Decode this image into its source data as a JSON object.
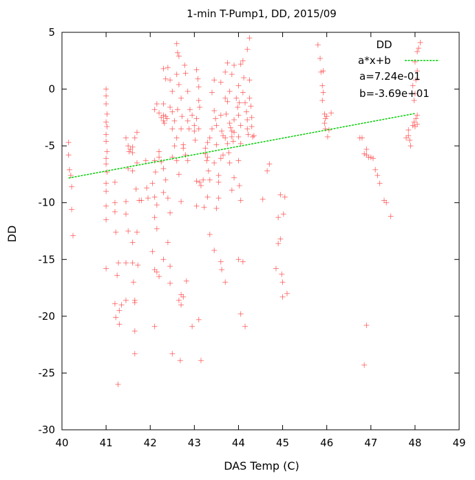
{
  "chart_data": {
    "type": "scatter",
    "title": "1-min T-Pump1, DD, 2015/09",
    "xlabel": "DAS Temp (C)",
    "ylabel": "DD",
    "xlim": [
      40,
      49
    ],
    "ylim": [
      -30,
      5
    ],
    "xticks": [
      "40",
      "41",
      "42",
      "43",
      "44",
      "45",
      "46",
      "47",
      "48",
      "49"
    ],
    "yticks": [
      "-30",
      "-25",
      "-20",
      "-15",
      "-10",
      "-5",
      "0",
      "5"
    ],
    "grid": false,
    "legend_position": "top-right",
    "legend": {
      "scatter_label": "DD",
      "fit_label": "a*x+b",
      "a_text": "a=7.24e-01",
      "b_text": "b=-3.69e+01"
    },
    "fit": {
      "a": 0.724,
      "b": -36.9,
      "x_range": [
        40.15,
        48.0
      ]
    },
    "colors": {
      "scatter": "#ff4040",
      "fit": "#00cc00"
    },
    "series": [
      {
        "marker": "plus",
        "points": [
          [
            40.15,
            -4.7
          ],
          [
            40.15,
            -5.8
          ],
          [
            40.17,
            -7.1
          ],
          [
            40.2,
            -7.6
          ],
          [
            40.22,
            -8.6
          ],
          [
            40.22,
            -10.6
          ],
          [
            40.25,
            -12.9
          ],
          [
            41.0,
            0.0
          ],
          [
            41.0,
            -0.6
          ],
          [
            41.0,
            -1.3
          ],
          [
            41.02,
            -2.2
          ],
          [
            41.0,
            -2.9
          ],
          [
            41.02,
            -3.3
          ],
          [
            41.0,
            -4.0
          ],
          [
            41.0,
            -4.6
          ],
          [
            41.02,
            -5.5
          ],
          [
            41.0,
            -6.1
          ],
          [
            41.0,
            -6.6
          ],
          [
            41.02,
            -7.3
          ],
          [
            41.0,
            -8.3
          ],
          [
            41.0,
            -9.0
          ],
          [
            41.0,
            -10.3
          ],
          [
            41.0,
            -11.5
          ],
          [
            41.0,
            -15.8
          ],
          [
            41.2,
            -8.2
          ],
          [
            41.2,
            -10.0
          ],
          [
            41.2,
            -10.8
          ],
          [
            41.22,
            -12.6
          ],
          [
            41.28,
            -15.3
          ],
          [
            41.25,
            -16.4
          ],
          [
            41.2,
            -18.9
          ],
          [
            41.22,
            -20.1
          ],
          [
            41.3,
            -20.7
          ],
          [
            41.3,
            -19.5
          ],
          [
            41.35,
            -19.0
          ],
          [
            41.27,
            -26.0
          ],
          [
            41.45,
            -4.3
          ],
          [
            41.5,
            -5.0
          ],
          [
            41.52,
            -5.5
          ],
          [
            41.55,
            -5.3
          ],
          [
            41.6,
            -5.1
          ],
          [
            41.6,
            -5.6
          ],
          [
            41.65,
            -4.3
          ],
          [
            41.5,
            -7.0
          ],
          [
            41.6,
            -7.2
          ],
          [
            41.45,
            -9.9
          ],
          [
            41.45,
            -11.0
          ],
          [
            41.5,
            -12.5
          ],
          [
            41.45,
            -15.3
          ],
          [
            41.45,
            -18.6
          ],
          [
            41.6,
            -13.5
          ],
          [
            41.6,
            -15.3
          ],
          [
            41.62,
            -17.0
          ],
          [
            41.65,
            -18.6
          ],
          [
            41.65,
            -18.8
          ],
          [
            41.65,
            -21.3
          ],
          [
            41.65,
            -23.3
          ],
          [
            41.7,
            -3.8
          ],
          [
            41.7,
            -6.5
          ],
          [
            41.68,
            -8.8
          ],
          [
            41.75,
            -9.8
          ],
          [
            41.7,
            -12.6
          ],
          [
            41.72,
            -15.5
          ],
          [
            41.9,
            -6.3
          ],
          [
            41.92,
            -8.7
          ],
          [
            41.95,
            -9.6
          ],
          [
            41.8,
            -9.8
          ],
          [
            42.1,
            -1.8
          ],
          [
            42.15,
            -1.3
          ],
          [
            42.1,
            -6.3
          ],
          [
            42.12,
            -7.3
          ],
          [
            42.05,
            -8.3
          ],
          [
            42.1,
            -9.5
          ],
          [
            42.15,
            -10.2
          ],
          [
            42.1,
            -11.3
          ],
          [
            42.15,
            -12.3
          ],
          [
            42.05,
            -14.3
          ],
          [
            42.1,
            -15.9
          ],
          [
            42.15,
            -16.1
          ],
          [
            42.2,
            -16.5
          ],
          [
            42.1,
            -20.9
          ],
          [
            42.2,
            -2.1
          ],
          [
            42.25,
            -2.5
          ],
          [
            42.3,
            -2.3
          ],
          [
            42.3,
            -2.8
          ],
          [
            42.35,
            -2.4
          ],
          [
            42.38,
            -2.6
          ],
          [
            42.3,
            -1.3
          ],
          [
            42.32,
            -3.0
          ],
          [
            42.2,
            -5.5
          ],
          [
            42.2,
            -6.0
          ],
          [
            42.25,
            -6.4
          ],
          [
            42.3,
            -7.0
          ],
          [
            42.35,
            -8.0
          ],
          [
            42.3,
            -9.1
          ],
          [
            42.4,
            -9.6
          ],
          [
            42.45,
            -10.9
          ],
          [
            42.4,
            -13.5
          ],
          [
            42.3,
            -15.0
          ],
          [
            42.45,
            -15.6
          ],
          [
            42.45,
            -17.1
          ],
          [
            42.5,
            -23.3
          ],
          [
            42.3,
            1.8
          ],
          [
            42.35,
            0.9
          ],
          [
            42.4,
            1.9
          ],
          [
            42.45,
            0.8
          ],
          [
            42.5,
            -0.2
          ],
          [
            42.45,
            -1.6
          ],
          [
            42.5,
            -2.0
          ],
          [
            42.55,
            -2.8
          ],
          [
            42.5,
            -3.5
          ],
          [
            42.55,
            -5.0
          ],
          [
            42.6,
            -4.3
          ],
          [
            42.5,
            -6.0
          ],
          [
            42.6,
            -6.3
          ],
          [
            42.65,
            -7.5
          ],
          [
            42.6,
            4.0
          ],
          [
            42.62,
            3.2
          ],
          [
            42.65,
            2.9
          ],
          [
            42.6,
            1.3
          ],
          [
            42.65,
            0.4
          ],
          [
            42.7,
            -0.8
          ],
          [
            42.62,
            -1.8
          ],
          [
            42.72,
            -2.4
          ],
          [
            42.7,
            -3.5
          ],
          [
            42.75,
            -4.9
          ],
          [
            42.75,
            -5.2
          ],
          [
            42.7,
            -9.9
          ],
          [
            42.7,
            -18.1
          ],
          [
            42.65,
            -18.6
          ],
          [
            42.7,
            -19.0
          ],
          [
            42.75,
            -18.3
          ],
          [
            42.68,
            -23.9
          ],
          [
            42.78,
            2.1
          ],
          [
            42.8,
            1.4
          ],
          [
            42.85,
            -0.2
          ],
          [
            42.9,
            -1.8
          ],
          [
            42.85,
            -2.8
          ],
          [
            42.88,
            -3.5
          ],
          [
            42.8,
            -5.8
          ],
          [
            42.85,
            -6.3
          ],
          [
            42.82,
            -16.9
          ],
          [
            42.95,
            -20.9
          ],
          [
            42.95,
            -2.3
          ],
          [
            43.0,
            -3.2
          ],
          [
            43.0,
            -3.7
          ],
          [
            43.02,
            -4.5
          ],
          [
            43.05,
            -8.1
          ],
          [
            43.05,
            -10.3
          ],
          [
            43.1,
            -20.3
          ],
          [
            43.15,
            -23.9
          ],
          [
            43.05,
            1.7
          ],
          [
            43.08,
            0.9
          ],
          [
            43.1,
            0.2
          ],
          [
            43.1,
            -1.0
          ],
          [
            43.12,
            -1.6
          ],
          [
            43.05,
            -2.6
          ],
          [
            43.1,
            -3.5
          ],
          [
            43.12,
            -8.2
          ],
          [
            43.15,
            -8.5
          ],
          [
            43.2,
            -8.0
          ],
          [
            43.22,
            -10.4
          ],
          [
            43.25,
            -5.2
          ],
          [
            43.25,
            -5.7
          ],
          [
            43.28,
            -6.3
          ],
          [
            43.3,
            -4.7
          ],
          [
            43.3,
            -6.0
          ],
          [
            43.32,
            -7.2
          ],
          [
            43.35,
            -8.0
          ],
          [
            43.3,
            -9.5
          ],
          [
            43.35,
            -12.8
          ],
          [
            43.35,
            -4.3
          ],
          [
            43.4,
            -0.3
          ],
          [
            43.45,
            0.8
          ],
          [
            43.45,
            -1.9
          ],
          [
            43.48,
            -2.6
          ],
          [
            43.4,
            -3.5
          ],
          [
            43.5,
            -3.2
          ],
          [
            43.5,
            -4.9
          ],
          [
            43.45,
            -6.5
          ],
          [
            43.55,
            -8.2
          ],
          [
            43.55,
            -9.6
          ],
          [
            43.45,
            -14.2
          ],
          [
            43.5,
            -10.5
          ],
          [
            43.6,
            -2.3
          ],
          [
            43.62,
            -3.7
          ],
          [
            43.65,
            -4.1
          ],
          [
            43.65,
            -5.8
          ],
          [
            43.6,
            -6.1
          ],
          [
            43.55,
            -7.6
          ],
          [
            43.7,
            -4.3
          ],
          [
            43.75,
            -4.8
          ],
          [
            43.7,
            -0.8
          ],
          [
            43.75,
            -1.1
          ],
          [
            43.72,
            -2.2
          ],
          [
            43.6,
            -15.2
          ],
          [
            43.62,
            -15.9
          ],
          [
            43.7,
            -17.0
          ],
          [
            43.8,
            -3.0
          ],
          [
            43.82,
            -3.4
          ],
          [
            43.85,
            -3.7
          ],
          [
            43.85,
            -4.2
          ],
          [
            43.88,
            -4.6
          ],
          [
            43.78,
            -5.6
          ],
          [
            43.8,
            -6.5
          ],
          [
            43.9,
            -7.8
          ],
          [
            43.85,
            -8.9
          ],
          [
            43.9,
            -3.8
          ],
          [
            43.9,
            -2.7
          ],
          [
            43.95,
            -0.8
          ],
          [
            43.98,
            -1.6
          ],
          [
            44.0,
            -2.3
          ],
          [
            44.05,
            -3.2
          ],
          [
            44.0,
            -4.2
          ],
          [
            44.05,
            -4.8
          ],
          [
            44.0,
            -6.3
          ],
          [
            44.02,
            -8.5
          ],
          [
            44.05,
            -9.8
          ],
          [
            44.0,
            -15.0
          ],
          [
            44.05,
            -19.8
          ],
          [
            44.1,
            -15.2
          ],
          [
            44.15,
            -20.9
          ],
          [
            44.1,
            -0.3
          ],
          [
            44.15,
            -1.2
          ],
          [
            44.18,
            -2.0
          ],
          [
            44.2,
            -2.7
          ],
          [
            44.2,
            -3.5
          ],
          [
            44.22,
            -4.0
          ],
          [
            44.25,
            -0.8
          ],
          [
            44.28,
            -1.5
          ],
          [
            44.3,
            -2.5
          ],
          [
            44.3,
            -3.3
          ],
          [
            44.32,
            -4.2
          ],
          [
            44.35,
            -4.1
          ],
          [
            44.0,
            0.3
          ],
          [
            44.02,
            -1.2
          ],
          [
            44.05,
            2.2
          ],
          [
            44.1,
            2.5
          ],
          [
            44.12,
            1.0
          ],
          [
            44.25,
            4.5
          ],
          [
            44.2,
            3.5
          ],
          [
            44.25,
            0.8
          ],
          [
            43.85,
            1.3
          ],
          [
            43.9,
            2.1
          ],
          [
            43.75,
            2.3
          ],
          [
            43.7,
            1.5
          ],
          [
            43.8,
            -0.2
          ],
          [
            43.6,
            0.6
          ],
          [
            44.55,
            -9.7
          ],
          [
            44.65,
            -7.2
          ],
          [
            44.7,
            -6.6
          ],
          [
            44.85,
            -15.8
          ],
          [
            44.9,
            -11.3
          ],
          [
            44.9,
            -13.6
          ],
          [
            44.95,
            -9.3
          ],
          [
            44.95,
            -13.2
          ],
          [
            44.98,
            -16.3
          ],
          [
            45.0,
            -17.0
          ],
          [
            45.0,
            -18.3
          ],
          [
            45.02,
            -11.0
          ],
          [
            45.05,
            -9.5
          ],
          [
            45.1,
            -18.0
          ],
          [
            45.8,
            3.9
          ],
          [
            45.85,
            2.7
          ],
          [
            45.87,
            1.5
          ],
          [
            45.9,
            0.3
          ],
          [
            45.92,
            -0.3
          ],
          [
            45.9,
            -1.0
          ],
          [
            45.95,
            -2.2
          ],
          [
            45.97,
            -2.6
          ],
          [
            45.95,
            -3.0
          ],
          [
            45.97,
            -3.5
          ],
          [
            46.0,
            -2.4
          ],
          [
            46.02,
            -4.2
          ],
          [
            46.05,
            -3.6
          ],
          [
            46.1,
            -2.1
          ],
          [
            45.92,
            1.6
          ],
          [
            46.75,
            -4.3
          ],
          [
            46.8,
            -4.3
          ],
          [
            46.85,
            -5.7
          ],
          [
            46.9,
            -5.3
          ],
          [
            46.9,
            -5.8
          ],
          [
            46.95,
            -6.0
          ],
          [
            47.0,
            -6.0
          ],
          [
            47.05,
            -6.1
          ],
          [
            47.1,
            -7.1
          ],
          [
            47.15,
            -7.6
          ],
          [
            47.2,
            -8.3
          ],
          [
            47.3,
            -9.8
          ],
          [
            47.35,
            -10.0
          ],
          [
            47.45,
            -11.2
          ],
          [
            46.9,
            -20.8
          ],
          [
            46.85,
            -24.3
          ],
          [
            47.8,
            -4.3
          ],
          [
            47.85,
            -4.1
          ],
          [
            47.85,
            -3.6
          ],
          [
            47.88,
            -4.5
          ],
          [
            47.9,
            -5.0
          ],
          [
            47.95,
            -3.2
          ],
          [
            47.98,
            -2.9
          ],
          [
            48.0,
            -3.3
          ],
          [
            48.02,
            -2.6
          ],
          [
            48.05,
            -3.1
          ],
          [
            48.05,
            -2.3
          ],
          [
            47.98,
            -1.0
          ],
          [
            48.0,
            -0.4
          ],
          [
            48.02,
            0.8
          ],
          [
            48.05,
            1.6
          ],
          [
            48.0,
            2.4
          ],
          [
            48.05,
            3.3
          ],
          [
            48.08,
            3.6
          ],
          [
            48.12,
            4.1
          ],
          [
            47.95,
            0.3
          ]
        ]
      }
    ]
  }
}
